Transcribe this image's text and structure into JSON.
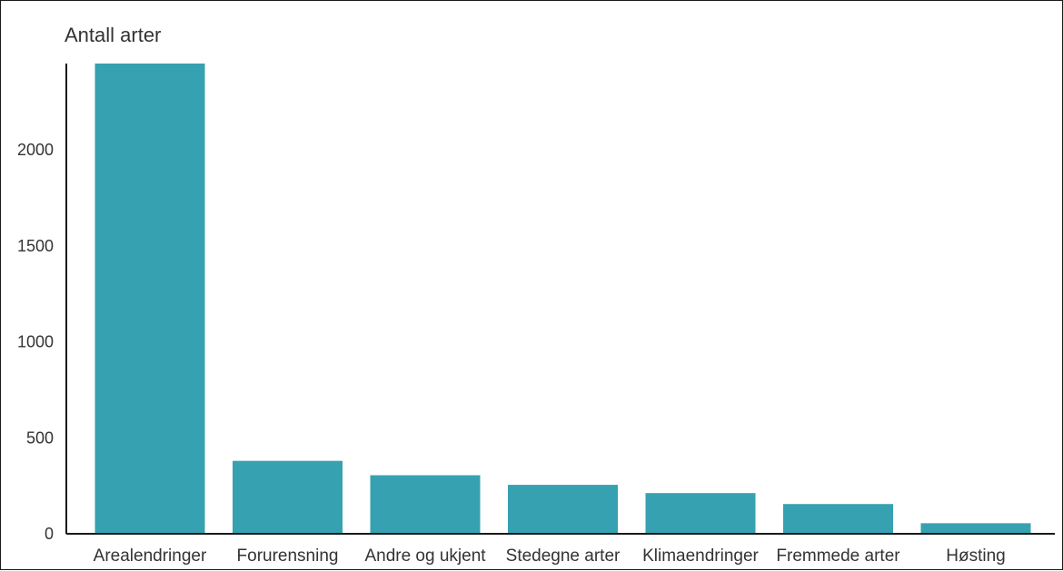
{
  "chart_data": {
    "type": "bar",
    "title": "Antall arter",
    "xlabel": "",
    "ylabel": "",
    "categories": [
      "Arealendringer",
      "Forurensning",
      "Andre og ukjent",
      "Stedegne arter",
      "Klimaendringer",
      "Fremmede arter",
      "Høsting"
    ],
    "values": [
      2450,
      380,
      305,
      255,
      212,
      155,
      55
    ],
    "yticks": [
      0,
      500,
      1000,
      1500,
      2000
    ],
    "ylim": [
      0,
      2450
    ],
    "grid": false,
    "legend": "none",
    "bar_color": "#36a1b1",
    "axis_color": "#1a1a1a"
  }
}
